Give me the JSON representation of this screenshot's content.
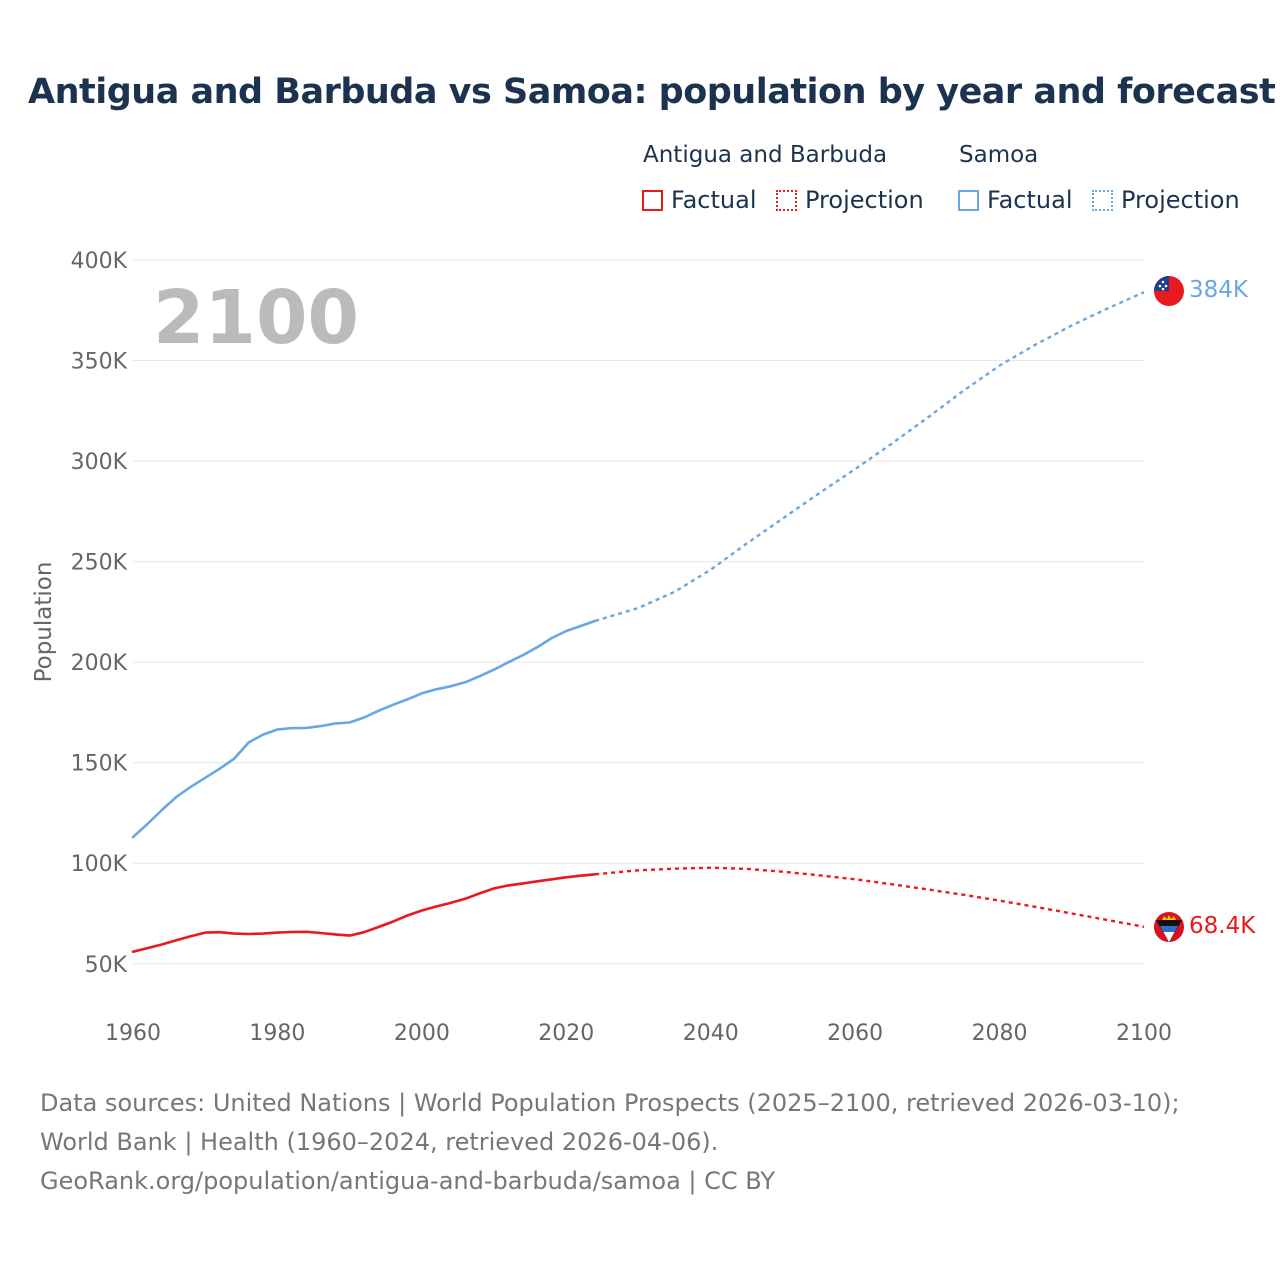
{
  "title": "Antigua and Barbuda vs Samoa: population by year and forecast",
  "legend": {
    "groups": [
      {
        "name": "Antigua and Barbuda",
        "color": "#e8191f",
        "factual_label": "Factual",
        "projection_label": "Projection"
      },
      {
        "name": "Samoa",
        "color": "#6aa7e2",
        "factual_label": "Factual",
        "projection_label": "Projection"
      }
    ]
  },
  "chart_data": {
    "type": "line",
    "title": "Antigua and Barbuda vs Samoa: population by year and forecast",
    "xlabel": "",
    "ylabel": "Population",
    "xlim": [
      1960,
      2100
    ],
    "ylim": [
      30000,
      400000
    ],
    "x_ticks": [
      1960,
      1980,
      2000,
      2020,
      2040,
      2060,
      2080,
      2100
    ],
    "y_ticks": [
      50000,
      100000,
      150000,
      200000,
      250000,
      300000,
      350000,
      400000
    ],
    "y_tick_labels": [
      "50K",
      "100K",
      "150K",
      "200K",
      "250K",
      "300K",
      "350K",
      "400K"
    ],
    "grid": true,
    "current_year_label": "2100",
    "series": [
      {
        "name": "Samoa",
        "color": "#6aa7e2",
        "end_label": "384K",
        "flag_icon": "samoa-flag-icon",
        "factual": {
          "x": [
            1960,
            1962,
            1964,
            1966,
            1968,
            1970,
            1972,
            1974,
            1976,
            1978,
            1980,
            1982,
            1984,
            1986,
            1988,
            1990,
            1992,
            1994,
            1996,
            1998,
            2000,
            2002,
            2004,
            2006,
            2008,
            2010,
            2012,
            2014,
            2016,
            2018,
            2020,
            2022,
            2024
          ],
          "y": [
            113000,
            119500,
            126500,
            133000,
            138000,
            142500,
            147000,
            152000,
            160000,
            164000,
            166500,
            167200,
            167300,
            168200,
            169500,
            170000,
            172500,
            175800,
            178800,
            181500,
            184500,
            186500,
            188000,
            190000,
            193000,
            196300,
            200000,
            203500,
            207500,
            212000,
            215500,
            218000,
            220500
          ]
        },
        "projection": {
          "x": [
            2024,
            2030,
            2035,
            2040,
            2045,
            2050,
            2055,
            2060,
            2065,
            2070,
            2075,
            2080,
            2085,
            2090,
            2095,
            2100
          ],
          "y": [
            220500,
            227000,
            235000,
            246000,
            259000,
            271500,
            284000,
            296000,
            308500,
            321500,
            335000,
            347500,
            358000,
            367500,
            376000,
            384000
          ]
        }
      },
      {
        "name": "Antigua and Barbuda",
        "color": "#e8191f",
        "end_label": "68.4K",
        "flag_icon": "antigua-and-barbuda-flag-icon",
        "factual": {
          "x": [
            1960,
            1962,
            1964,
            1966,
            1968,
            1970,
            1972,
            1974,
            1976,
            1978,
            1980,
            1982,
            1984,
            1986,
            1988,
            1990,
            1992,
            1994,
            1996,
            1998,
            2000,
            2002,
            2004,
            2006,
            2008,
            2010,
            2012,
            2014,
            2016,
            2018,
            2020,
            2022,
            2024
          ],
          "y": [
            56000,
            57800,
            59600,
            61700,
            63700,
            65500,
            65700,
            65000,
            64800,
            65000,
            65500,
            65800,
            65900,
            65300,
            64600,
            64000,
            65700,
            68300,
            71000,
            74000,
            76500,
            78500,
            80300,
            82300,
            85000,
            87500,
            89000,
            90000,
            91000,
            92000,
            93000,
            93800,
            94500
          ]
        },
        "projection": {
          "x": [
            2024,
            2030,
            2035,
            2040,
            2045,
            2050,
            2055,
            2060,
            2065,
            2070,
            2075,
            2080,
            2085,
            2090,
            2095,
            2100
          ],
          "y": [
            94500,
            96500,
            97300,
            97800,
            97200,
            95800,
            94000,
            92000,
            89600,
            87000,
            84300,
            81400,
            78300,
            75000,
            71700,
            68400
          ]
        }
      }
    ]
  },
  "source": {
    "line1": "Data sources: United Nations | World Population Prospects (2025–2100, retrieved 2026-03-10); World Bank | Health (1960–2024, retrieved 2026-04-06).",
    "line2": "GeoRank.org/population/antigua-and-barbuda/samoa | CC BY"
  }
}
